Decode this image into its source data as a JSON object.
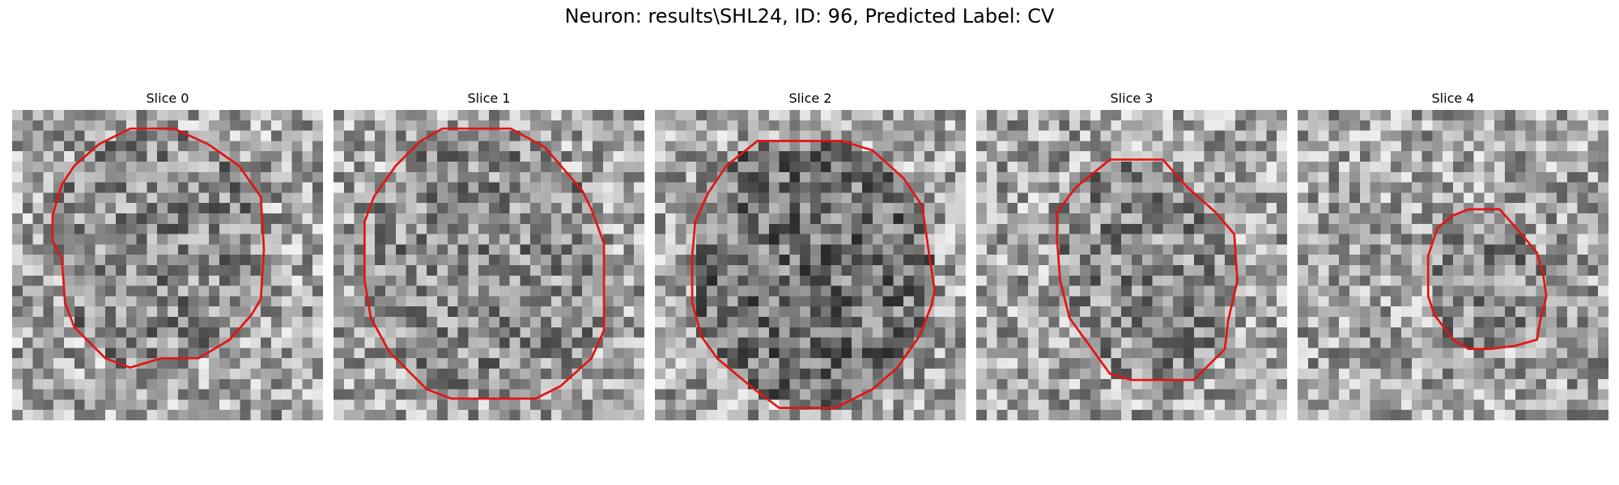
{
  "figure": {
    "title": "Neuron: results\\SHL24, ID: 96, Predicted Label: CV",
    "contour_color": "#e31414"
  },
  "slices": [
    {
      "label": "Slice 0",
      "contour": [
        [
          0.38,
          0.06
        ],
        [
          0.52,
          0.06
        ],
        [
          0.63,
          0.11
        ],
        [
          0.73,
          0.18
        ],
        [
          0.8,
          0.28
        ],
        [
          0.81,
          0.45
        ],
        [
          0.8,
          0.61
        ],
        [
          0.77,
          0.66
        ],
        [
          0.7,
          0.74
        ],
        [
          0.6,
          0.8
        ],
        [
          0.48,
          0.8
        ],
        [
          0.38,
          0.83
        ],
        [
          0.3,
          0.8
        ],
        [
          0.2,
          0.7
        ],
        [
          0.17,
          0.62
        ],
        [
          0.16,
          0.48
        ],
        [
          0.13,
          0.42
        ],
        [
          0.13,
          0.34
        ],
        [
          0.16,
          0.24
        ],
        [
          0.2,
          0.18
        ],
        [
          0.28,
          0.11
        ]
      ]
    },
    {
      "label": "Slice 1",
      "contour": [
        [
          0.35,
          0.06
        ],
        [
          0.57,
          0.06
        ],
        [
          0.68,
          0.12
        ],
        [
          0.8,
          0.26
        ],
        [
          0.83,
          0.32
        ],
        [
          0.87,
          0.43
        ],
        [
          0.87,
          0.71
        ],
        [
          0.83,
          0.8
        ],
        [
          0.73,
          0.89
        ],
        [
          0.65,
          0.93
        ],
        [
          0.38,
          0.93
        ],
        [
          0.3,
          0.9
        ],
        [
          0.18,
          0.78
        ],
        [
          0.12,
          0.67
        ],
        [
          0.1,
          0.55
        ],
        [
          0.1,
          0.36
        ],
        [
          0.13,
          0.28
        ],
        [
          0.2,
          0.18
        ],
        [
          0.28,
          0.1
        ]
      ]
    },
    {
      "label": "Slice 2",
      "contour": [
        [
          0.33,
          0.1
        ],
        [
          0.6,
          0.1
        ],
        [
          0.7,
          0.13
        ],
        [
          0.8,
          0.22
        ],
        [
          0.86,
          0.31
        ],
        [
          0.88,
          0.45
        ],
        [
          0.9,
          0.58
        ],
        [
          0.89,
          0.63
        ],
        [
          0.85,
          0.73
        ],
        [
          0.78,
          0.83
        ],
        [
          0.7,
          0.9
        ],
        [
          0.58,
          0.96
        ],
        [
          0.5,
          0.96
        ],
        [
          0.4,
          0.96
        ],
        [
          0.32,
          0.9
        ],
        [
          0.2,
          0.8
        ],
        [
          0.15,
          0.73
        ],
        [
          0.12,
          0.62
        ],
        [
          0.12,
          0.47
        ],
        [
          0.13,
          0.36
        ],
        [
          0.17,
          0.27
        ],
        [
          0.23,
          0.18
        ]
      ]
    },
    {
      "label": "Slice 3",
      "contour": [
        [
          0.43,
          0.16
        ],
        [
          0.6,
          0.16
        ],
        [
          0.68,
          0.25
        ],
        [
          0.77,
          0.33
        ],
        [
          0.83,
          0.4
        ],
        [
          0.84,
          0.55
        ],
        [
          0.81,
          0.68
        ],
        [
          0.8,
          0.77
        ],
        [
          0.74,
          0.83
        ],
        [
          0.7,
          0.87
        ],
        [
          0.5,
          0.87
        ],
        [
          0.43,
          0.85
        ],
        [
          0.3,
          0.67
        ],
        [
          0.27,
          0.55
        ],
        [
          0.26,
          0.42
        ],
        [
          0.26,
          0.33
        ],
        [
          0.32,
          0.25
        ]
      ]
    },
    {
      "label": "Slice 4",
      "contour": [
        [
          0.55,
          0.32
        ],
        [
          0.65,
          0.32
        ],
        [
          0.72,
          0.4
        ],
        [
          0.77,
          0.46
        ],
        [
          0.79,
          0.53
        ],
        [
          0.8,
          0.6
        ],
        [
          0.78,
          0.68
        ],
        [
          0.77,
          0.74
        ],
        [
          0.7,
          0.76
        ],
        [
          0.62,
          0.77
        ],
        [
          0.55,
          0.77
        ],
        [
          0.5,
          0.74
        ],
        [
          0.44,
          0.66
        ],
        [
          0.42,
          0.6
        ],
        [
          0.42,
          0.47
        ],
        [
          0.45,
          0.38
        ],
        [
          0.5,
          0.34
        ]
      ]
    }
  ]
}
